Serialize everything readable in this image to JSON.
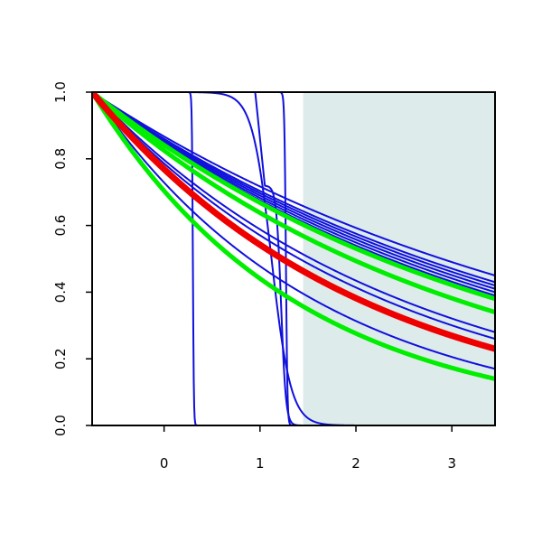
{
  "chart_data": {
    "type": "line",
    "title": "",
    "xlabel": "",
    "ylabel": "",
    "xlim": [
      -0.75,
      3.45
    ],
    "ylim": [
      0.0,
      1.0
    ],
    "x_ticks": [
      0,
      1,
      2,
      3
    ],
    "x_tick_labels": [
      "0",
      "1",
      "2",
      "3"
    ],
    "y_ticks": [
      0.0,
      0.2,
      0.4,
      0.6,
      0.8,
      1.0
    ],
    "y_tick_labels": [
      "0.0",
      "0.2",
      "0.4",
      "0.6",
      "0.8",
      "1.0"
    ],
    "grid": false,
    "legend": "none",
    "shaded_region": {
      "x_from": 1.45,
      "x_to": 3.45,
      "color": "#deebeb"
    },
    "colors": {
      "blue": "#1010dd",
      "green": "#00ee00",
      "red": "#ee0000",
      "axis": "#000000"
    },
    "series": [
      {
        "color": "blue",
        "width": 2,
        "kind": "step",
        "center": 0.3,
        "steep": 200
      },
      {
        "color": "blue",
        "width": 2,
        "kind": "step",
        "center": 1.27,
        "steep": 130
      },
      {
        "color": "blue",
        "width": 2,
        "kind": "step",
        "center": 1.12,
        "steep": 10
      },
      {
        "color": "blue",
        "width": 2,
        "kind": "step",
        "center": 1.22,
        "steep": 40,
        "from": 0.72
      },
      {
        "color": "blue",
        "width": 2,
        "kind": "decay",
        "end": 0.45
      },
      {
        "color": "blue",
        "width": 2,
        "kind": "decay",
        "end": 0.43
      },
      {
        "color": "blue",
        "width": 2,
        "kind": "decay",
        "end": 0.42
      },
      {
        "color": "blue",
        "width": 2,
        "kind": "decay",
        "end": 0.41
      },
      {
        "color": "blue",
        "width": 2,
        "kind": "decay",
        "end": 0.4
      },
      {
        "color": "blue",
        "width": 2,
        "kind": "decay",
        "end": 0.39
      },
      {
        "color": "blue",
        "width": 2,
        "kind": "decay",
        "end": 0.38
      },
      {
        "color": "blue",
        "width": 2,
        "kind": "decay",
        "end": 0.28
      },
      {
        "color": "blue",
        "width": 2,
        "kind": "decay",
        "end": 0.26
      },
      {
        "color": "blue",
        "width": 2,
        "kind": "decay",
        "end": 0.17
      },
      {
        "color": "green",
        "width": 5,
        "kind": "decay",
        "end": 0.38
      },
      {
        "color": "green",
        "width": 5,
        "kind": "decay",
        "end": 0.34
      },
      {
        "color": "green",
        "width": 5,
        "kind": "decay",
        "end": 0.14
      },
      {
        "color": "red",
        "width": 7,
        "kind": "decay",
        "end": 0.23
      }
    ]
  }
}
